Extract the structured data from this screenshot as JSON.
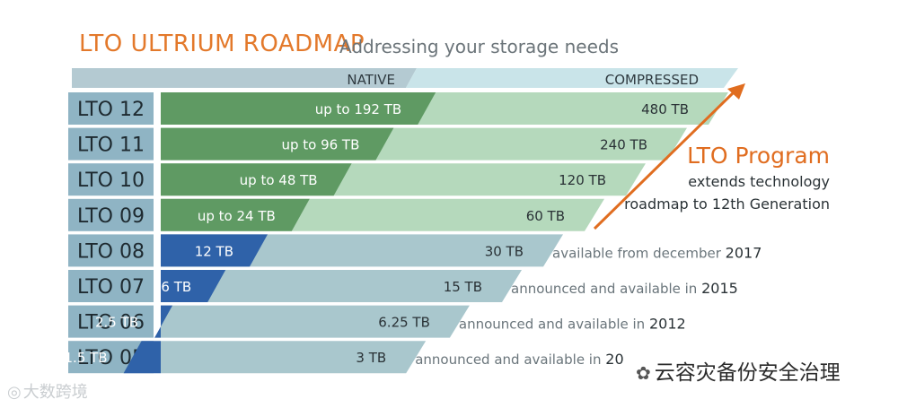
{
  "header": {
    "title": "LTO ULTRIUM ROADMAP",
    "subtitle": "Addressing your storage needs"
  },
  "colors": {
    "title": "#e3792b",
    "gen_label_bg": "#8fb4c4",
    "native_planned": "#5f9a63",
    "compressed_planned": "#b5d9bc",
    "native_available": "#2f62a9",
    "compressed_available": "#a9c7cd",
    "header_native": "#b4cad2",
    "header_compressed": "#c9e4e9",
    "arrow": "#e06d20"
  },
  "chart_data": {
    "type": "bar",
    "title": "LTO ULTRIUM ROADMAP",
    "subtitle": "Addressing your storage needs",
    "column_headers": [
      "NATIVE",
      "COMPRESSED"
    ],
    "categories": [
      "LTO 12",
      "LTO 11",
      "LTO 10",
      "LTO 09",
      "LTO 08",
      "LTO 07",
      "LTO 06",
      "LTO 05"
    ],
    "series": [
      {
        "name": "NATIVE",
        "values": [
          192,
          96,
          48,
          24,
          12,
          6,
          2.5,
          1.5
        ],
        "labels": [
          "up to 192 TB",
          "up to 96 TB",
          "up to 48 TB",
          "up to 24 TB",
          "12 TB",
          "6 TB",
          "2.5 TB",
          "1.5 TB"
        ]
      },
      {
        "name": "COMPRESSED",
        "values": [
          480,
          240,
          120,
          60,
          30,
          15,
          6.25,
          3
        ],
        "labels": [
          "480 TB",
          "240 TB",
          "120 TB",
          "60 TB",
          "30 TB",
          "15 TB",
          "6.25 TB",
          "3 TB"
        ]
      }
    ],
    "status": [
      "planned",
      "planned",
      "planned",
      "planned",
      "available",
      "available",
      "available",
      "available"
    ],
    "availability_notes": [
      {
        "text": "available from december ",
        "year": "2017"
      },
      {
        "text": "announced and available in ",
        "year": "2015"
      },
      {
        "text": "announced and available in ",
        "year": "2012"
      },
      {
        "text": "announced and available in ",
        "year": "20"
      }
    ],
    "annotation": {
      "title": "LTO Program",
      "lines": [
        "extends technology",
        "roadmap to 12th Generation"
      ]
    }
  },
  "watermarks": {
    "left": "大数跨境",
    "right": "云容灾备份安全治理"
  }
}
